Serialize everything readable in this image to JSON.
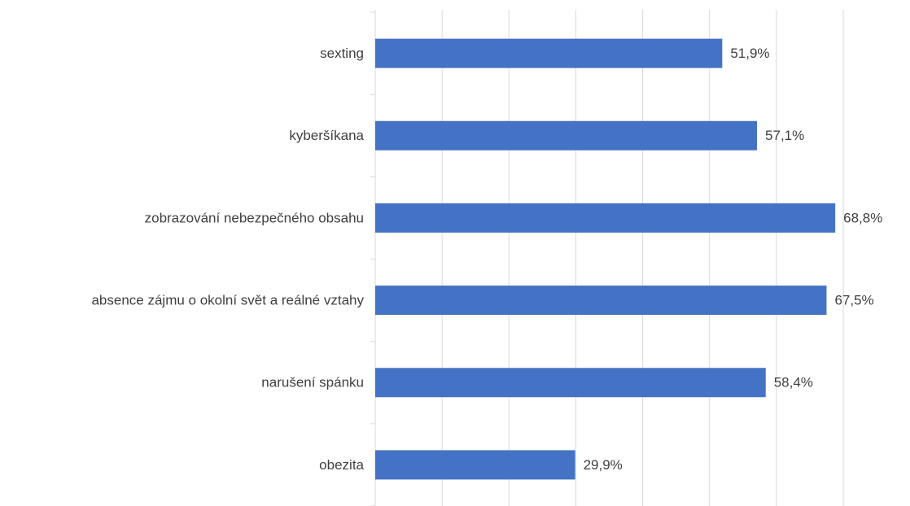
{
  "chart_data": {
    "type": "bar",
    "orientation": "horizontal",
    "categories": [
      "sexting",
      "kyberšíkana",
      "zobrazování nebezpečného obsahu",
      "absence zájmu o okolní svět a reálné vztahy",
      "narušení spánku",
      "obezita"
    ],
    "values": [
      51.9,
      57.1,
      68.8,
      67.5,
      58.4,
      29.9
    ],
    "value_labels": [
      "51,9%",
      "57,1%",
      "68,8%",
      "67,5%",
      "58,4%",
      "29,9%"
    ],
    "color": "#4472c4",
    "xlim": [
      0,
      70
    ],
    "xticks": [
      0,
      10,
      20,
      30,
      40,
      50,
      60,
      70
    ],
    "grid": true
  }
}
